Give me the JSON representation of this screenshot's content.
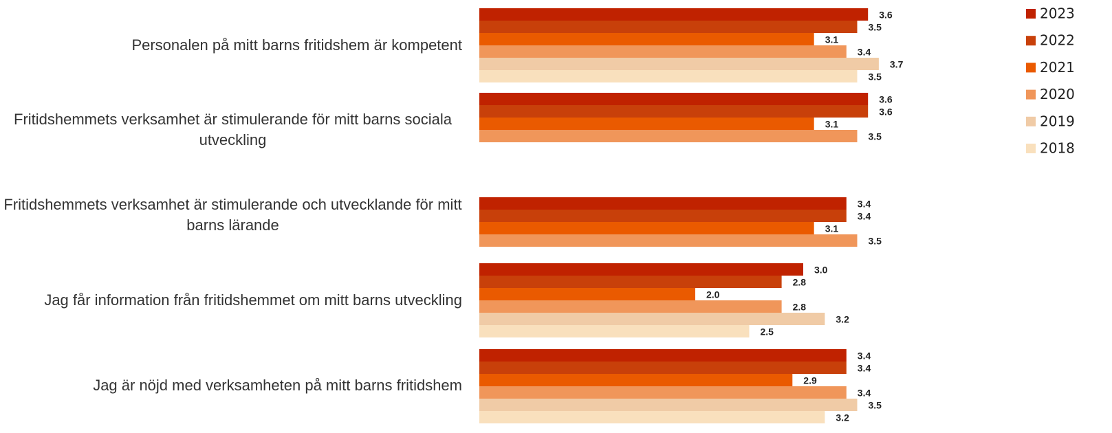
{
  "chart_data": {
    "type": "bar",
    "orientation": "horizontal",
    "categories": [
      "Personalen på mitt barns fritidshem är kompetent",
      "Fritidshemmets verksamhet är stimulerande för mitt barns sociala utveckling",
      "Fritidshemmets verksamhet är stimulerande och utvecklande för mitt barns lärande",
      "Jag får information från fritidshemmet om mitt barns utveckling",
      "Jag är nöjd med verksamheten på mitt barns fritidshem"
    ],
    "series": [
      {
        "name": "2023",
        "color": "#c02200",
        "values": [
          3.6,
          3.6,
          3.4,
          3.0,
          3.4
        ],
        "value_labels": [
          "3.6",
          "3.6",
          "3.4",
          "3.0",
          "3.4"
        ]
      },
      {
        "name": "2022",
        "color": "#c8400a",
        "values": [
          3.5,
          3.6,
          3.4,
          2.8,
          3.4
        ],
        "value_labels": [
          "3.5",
          "3.6",
          "3.4",
          "2.8",
          "3.4"
        ]
      },
      {
        "name": "2021",
        "color": "#ea5a00",
        "values": [
          3.1,
          3.1,
          3.1,
          2.0,
          2.9
        ],
        "value_labels": [
          "3.1",
          "3.1",
          "3.1",
          "2.0",
          "2.9"
        ]
      },
      {
        "name": "2020",
        "color": "#f0965a",
        "values": [
          3.4,
          3.5,
          3.5,
          2.8,
          3.4
        ],
        "value_labels": [
          "3.4",
          "3.5",
          "3.5",
          "2.8",
          "3.4"
        ]
      },
      {
        "name": "2019",
        "color": "#f0cba6",
        "values": [
          3.7,
          null,
          null,
          3.2,
          3.5
        ],
        "value_labels": [
          "3.7",
          null,
          null,
          "3.2",
          "3.5"
        ]
      },
      {
        "name": "2018",
        "color": "#f9e0bd",
        "values": [
          3.5,
          null,
          null,
          2.5,
          3.2
        ],
        "value_labels": [
          "3.5",
          null,
          null,
          "2.5",
          "3.2"
        ]
      }
    ],
    "legend": "upper right"
  }
}
